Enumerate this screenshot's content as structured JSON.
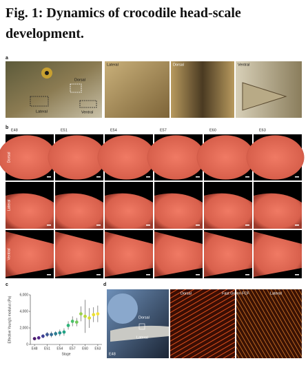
{
  "header": {
    "title": "Fig. 1: Dynamics of crocodile head-scale development."
  },
  "panels": {
    "a": {
      "label": "a",
      "overview_labels": [
        "Dorsal",
        "Lateral",
        "Ventral"
      ],
      "closeups": [
        "Lateral",
        "Dorsal",
        "Ventral"
      ]
    },
    "b": {
      "label": "b",
      "stages": [
        "E48",
        "E51",
        "E54",
        "E57",
        "E60",
        "E63"
      ],
      "views": [
        "Dorsal",
        "Lateral",
        "Ventral"
      ]
    },
    "c": {
      "label": "c"
    },
    "d": {
      "label": "d",
      "embryo_labels": [
        "Dorsal",
        "Lateral",
        "E48"
      ],
      "stain_labels": [
        "Dorsal",
        "Fast Green FCF",
        "Lateral"
      ]
    }
  },
  "chart_data": {
    "type": "scatter",
    "xlabel": "Stage",
    "ylabel": "Effective Young's modulus (Pa)",
    "x": [
      48,
      49,
      50,
      51,
      52,
      53,
      54,
      55,
      56,
      57,
      58,
      59,
      60,
      61,
      62,
      63
    ],
    "values": [
      700,
      800,
      1000,
      1200,
      1200,
      1300,
      1400,
      1500,
      2300,
      2800,
      2700,
      3700,
      3400,
      3200,
      3600,
      3700
    ],
    "errors": [
      150,
      200,
      250,
      300,
      350,
      300,
      400,
      450,
      500,
      600,
      500,
      900,
      2000,
      1200,
      900,
      1000
    ],
    "colors": [
      "#4a1a6b",
      "#54258a",
      "#3f3f95",
      "#3a5694",
      "#336b94",
      "#2d7d92",
      "#27908e",
      "#21a385",
      "#2eb479",
      "#4bbf6a",
      "#72c85a",
      "#98d14a",
      "#bad83d",
      "#d8dd35",
      "#ebe032",
      "#f5e23a"
    ],
    "xlim": [
      47,
      64
    ],
    "xticks": [
      {
        "value": 48,
        "label": "E48"
      },
      {
        "value": 51,
        "label": "E51"
      },
      {
        "value": 54,
        "label": "E54"
      },
      {
        "value": 57,
        "label": "E57"
      },
      {
        "value": 60,
        "label": "E60"
      },
      {
        "value": 63,
        "label": "E63"
      }
    ],
    "ylim": [
      0,
      6000
    ],
    "yticks": [
      0,
      {
        "value": 2000,
        "label": "2,000"
      },
      {
        "value": 4000,
        "label": "4,000"
      },
      {
        "value": 6000,
        "label": "6,000"
      }
    ]
  }
}
